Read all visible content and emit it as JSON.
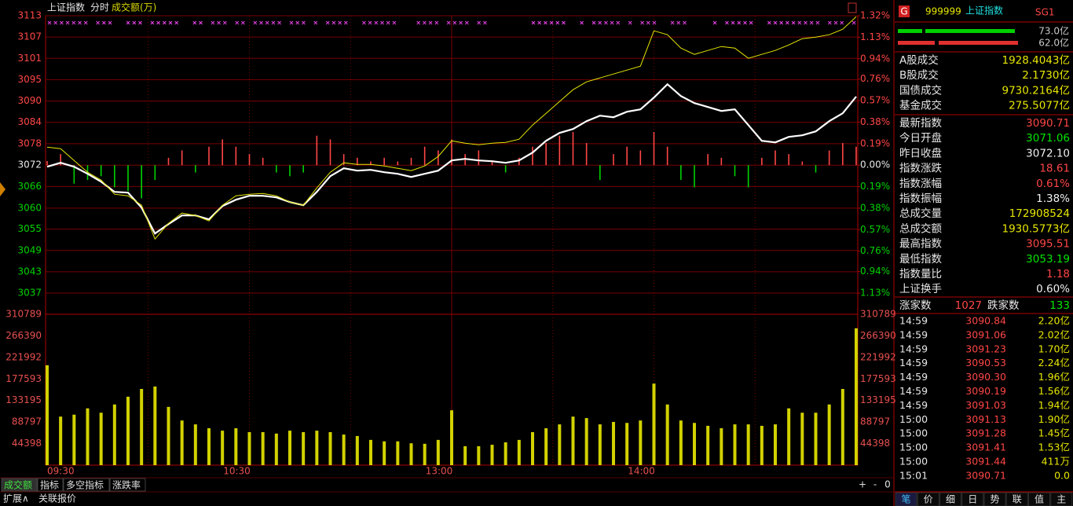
{
  "header": {
    "title": "上证指数",
    "mode": "分时",
    "indicator": "成交额(万)"
  },
  "chart_data": [
    {
      "type": "line",
      "categories": [
        "09:30",
        null,
        null,
        null,
        null,
        null,
        null,
        null,
        null,
        null,
        null,
        null,
        null,
        null,
        null,
        "10:30",
        null,
        null,
        null,
        null,
        null,
        null,
        null,
        null,
        null,
        null,
        null,
        null,
        null,
        null,
        "13:00",
        null,
        null,
        null,
        null,
        null,
        null,
        null,
        null,
        null,
        null,
        null,
        null,
        null,
        null,
        "14:00",
        null,
        null,
        null,
        null,
        null,
        null,
        null,
        null,
        null,
        null,
        null,
        null,
        null,
        null,
        null
      ],
      "series": [
        {
          "color": "#ffffff",
          "values": [
            3071.67,
            3072.74,
            3071.67,
            3069.75,
            3067.62,
            3064.85,
            3064.64,
            3060.59,
            3053.55,
            3056.11,
            3058.46,
            3058.46,
            3057.39,
            3061.01,
            3062.72,
            3063.78,
            3063.78,
            3063.36,
            3062.08,
            3061.23,
            3064.85,
            3069.12,
            3071.25,
            3070.61,
            3070.82,
            3070.18,
            3069.75,
            3068.9,
            3069.75,
            3070.61,
            3073.38,
            3073.81,
            3073.38,
            3073.17,
            3072.74,
            3073.38,
            3075.51,
            3078.71,
            3080.84,
            3081.91,
            3084.04,
            3085.53,
            3085.11,
            3086.6,
            3087.24,
            3090.44,
            3094.06,
            3090.86,
            3088.94,
            3087.88,
            3086.81,
            3087.24,
            3082.97,
            3078.71,
            3078.28,
            3079.78,
            3080.2,
            3081.27,
            3084.04,
            3086.17,
            3090.71
          ]
        },
        {
          "color": "#e6e600",
          "values": [
            3077.0,
            3076.58,
            3073.38,
            3070.18,
            3068.05,
            3064.21,
            3063.78,
            3061.23,
            3052.06,
            3056.32,
            3059.09,
            3058.46,
            3056.96,
            3061.23,
            3063.78,
            3064.21,
            3064.42,
            3063.78,
            3062.08,
            3061.23,
            3065.92,
            3070.18,
            3072.74,
            3072.31,
            3072.31,
            3071.89,
            3071.25,
            3070.61,
            3071.89,
            3074.45,
            3078.71,
            3078.07,
            3077.64,
            3078.07,
            3078.28,
            3079.14,
            3082.97,
            3086.17,
            3089.37,
            3092.57,
            3094.7,
            3095.77,
            3096.83,
            3097.9,
            3098.96,
            3108.56,
            3107.49,
            3103.87,
            3102.16,
            3103.23,
            3104.29,
            3103.87,
            3101.1,
            3102.16,
            3103.23,
            3104.72,
            3106.43,
            3106.85,
            3107.49,
            3108.98,
            3112.39
          ]
        }
      ],
      "ylim": [
        3037.39,
        3112.65
      ],
      "yticks": [
        {
          "value": 3112.65,
          "label": "3113"
        },
        {
          "value": 3106.86,
          "label": "3107"
        },
        {
          "value": 3101.08,
          "label": "3101"
        },
        {
          "value": 3095.29,
          "label": "3095"
        },
        {
          "value": 3089.5,
          "label": "3090"
        },
        {
          "value": 3083.71,
          "label": "3084"
        },
        {
          "value": 3077.93,
          "label": "3078"
        },
        {
          "value": 3072.1,
          "label": "3072"
        },
        {
          "value": 3066.31,
          "label": "3066"
        },
        {
          "value": 3060.45,
          "label": "3060"
        },
        {
          "value": 3054.74,
          "label": "3055"
        },
        {
          "value": 3048.95,
          "label": "3049"
        },
        {
          "value": 3043.17,
          "label": "3043"
        },
        {
          "value": 3037.39,
          "label": "3037"
        }
      ],
      "y2lim": [
        -1.13,
        1.32
      ],
      "y2ticks": [
        {
          "value": 1.32,
          "label": "1.32%"
        },
        {
          "value": 1.13,
          "label": "1.13%"
        },
        {
          "value": 0.94,
          "label": "0.94%"
        },
        {
          "value": 0.76,
          "label": "0.76%"
        },
        {
          "value": 0.57,
          "label": "0.57%"
        },
        {
          "value": 0.38,
          "label": "0.38%"
        },
        {
          "value": 0.19,
          "label": "0.19%"
        },
        {
          "value": 0,
          "label": "0.00%"
        },
        {
          "value": -0.19,
          "label": "0.19%"
        },
        {
          "value": -0.38,
          "label": "0.38%"
        },
        {
          "value": -0.57,
          "label": "0.57%"
        },
        {
          "value": -0.76,
          "label": "0.76%"
        },
        {
          "value": -0.94,
          "label": "0.94%"
        },
        {
          "value": -1.13,
          "label": "1.13%"
        }
      ],
      "grid": true,
      "up_color": "#ff4646",
      "down_color": "#00d200",
      "flat_color": "#e8e8e8"
    },
    {
      "type": "bar",
      "values": [
        1.1,
        3,
        -5,
        -4,
        -3,
        -6,
        -7,
        -9,
        -4,
        2,
        4,
        -2,
        5,
        7,
        5,
        3,
        2,
        -2,
        -3,
        -2,
        8,
        7,
        3,
        2,
        1,
        2,
        1,
        2,
        5,
        4,
        7,
        3,
        4,
        1,
        -2,
        2,
        5,
        6,
        8,
        9,
        6,
        -4,
        3,
        5,
        4,
        9,
        5,
        -4,
        -6,
        3,
        2,
        -3,
        -6,
        2,
        4,
        3,
        1,
        -2,
        4,
        6,
        5
      ],
      "ylim": [
        -34.71,
        40.55
      ],
      "up_color": "#ff4646",
      "down_color": "#00d200"
    },
    {
      "type": "bar",
      "values": [
        205800,
        100000,
        104000,
        117000,
        108000,
        125000,
        141000,
        157000,
        162000,
        120000,
        92000,
        84000,
        76000,
        71000,
        76000,
        68000,
        68000,
        65000,
        71000,
        68000,
        71000,
        68000,
        63000,
        60000,
        52000,
        49000,
        49000,
        45000,
        44000,
        52000,
        113000,
        39000,
        39000,
        42000,
        47000,
        52000,
        68000,
        76000,
        84000,
        100000,
        97000,
        84000,
        89000,
        87000,
        92000,
        168000,
        125000,
        92000,
        87000,
        81000,
        76000,
        84000,
        84000,
        81000,
        84000,
        117000,
        108000,
        108000,
        125000,
        157000,
        282000
      ],
      "color": "#d2d200",
      "ylim": [
        0,
        310789
      ],
      "yticks": [
        44398,
        88797,
        133195,
        177593,
        221992,
        266390,
        310789
      ],
      "grid": false
    }
  ],
  "quote_panel": {
    "badge": "G",
    "code": "999999",
    "name": "上证指数",
    "tag": "SG1",
    "buy_amount": "73.0亿",
    "sell_amount": "62.0亿",
    "turnover": [
      {
        "label": "A股成交",
        "value": "1928.4043亿"
      },
      {
        "label": "B股成交",
        "value": "2.1730亿"
      },
      {
        "label": "国债成交",
        "value": "9730.2164亿"
      },
      {
        "label": "基金成交",
        "value": "275.5077亿"
      }
    ],
    "stats": [
      {
        "label": "最新指数",
        "value": "3090.71",
        "color": "#ff4646"
      },
      {
        "label": "今日开盘",
        "value": "3071.06",
        "color": "#00e600"
      },
      {
        "label": "昨日收盘",
        "value": "3072.10",
        "color": "#f0f0f0"
      },
      {
        "label": "指数涨跌",
        "value": "18.61",
        "color": "#ff4646"
      },
      {
        "label": "指数涨幅",
        "value": "0.61%",
        "color": "#ff4646"
      },
      {
        "label": "指数振幅",
        "value": "1.38%",
        "color": "#f0f0f0"
      },
      {
        "label": "总成交量",
        "value": "172908524",
        "color": "#e6e600"
      },
      {
        "label": "总成交额",
        "value": "1930.5773亿",
        "color": "#e6e600"
      },
      {
        "label": "最高指数",
        "value": "3095.51",
        "color": "#ff4646"
      },
      {
        "label": "最低指数",
        "value": "3053.19",
        "color": "#00e600"
      },
      {
        "label": "指数量比",
        "value": "1.18",
        "color": "#ff4646"
      },
      {
        "label": "上证换手",
        "value": "0.60%",
        "color": "#f0f0f0"
      }
    ],
    "advance_label": "涨家数",
    "advance": "1027",
    "decline_label": "跌家数",
    "decline": "133"
  },
  "ticks": [
    [
      "14:59",
      "3090.84",
      "2.20亿"
    ],
    [
      "14:59",
      "3091.06",
      "2.02亿"
    ],
    [
      "14:59",
      "3091.23",
      "1.70亿"
    ],
    [
      "14:59",
      "3090.53",
      "2.24亿"
    ],
    [
      "14:59",
      "3090.30",
      "1.96亿"
    ],
    [
      "14:59",
      "3090.19",
      "1.56亿"
    ],
    [
      "14:59",
      "3091.03",
      "1.94亿"
    ],
    [
      "15:00",
      "3091.13",
      "1.90亿"
    ],
    [
      "15:00",
      "3091.28",
      "1.45亿"
    ],
    [
      "15:00",
      "3091.41",
      "1.53亿"
    ],
    [
      "15:00",
      "3091.44",
      "411万"
    ],
    [
      "15:01",
      "3090.71",
      "0.0"
    ]
  ],
  "tabs": [
    "成交额",
    "指标",
    "多空指标",
    "涨跌率"
  ],
  "footer_tabs": [
    "扩展∧",
    "关联报价"
  ],
  "zoom_buttons": [
    "+",
    "-",
    "0"
  ],
  "panel_tabs": [
    "笔",
    "价",
    "细",
    "日",
    "势",
    "联",
    "值",
    "主"
  ]
}
